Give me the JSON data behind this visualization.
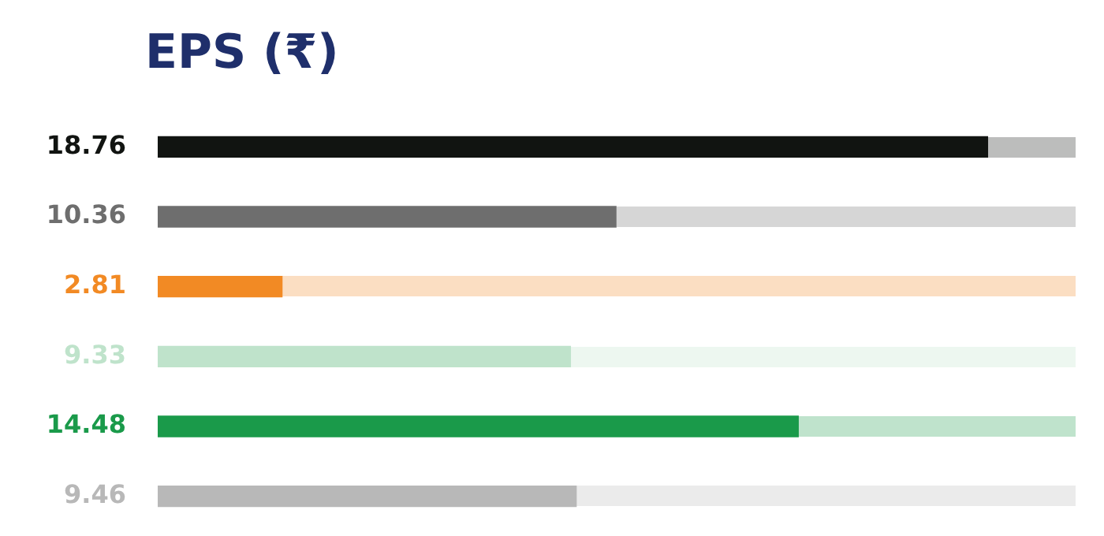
{
  "chart_data": {
    "type": "bar",
    "orientation": "horizontal",
    "title": "EPS (₹)",
    "categories": [
      null,
      null,
      null,
      null,
      null,
      null
    ],
    "values": [
      18.76,
      10.36,
      2.81,
      9.33,
      14.48,
      9.46
    ],
    "colors": [
      "#111411",
      "#6e6e6e",
      "#f28a24",
      "#bfe3cb",
      "#1a9a4a",
      "#b8b8b8"
    ],
    "xlim": [
      0,
      20.75
    ],
    "data_labels": true,
    "legend": false
  }
}
